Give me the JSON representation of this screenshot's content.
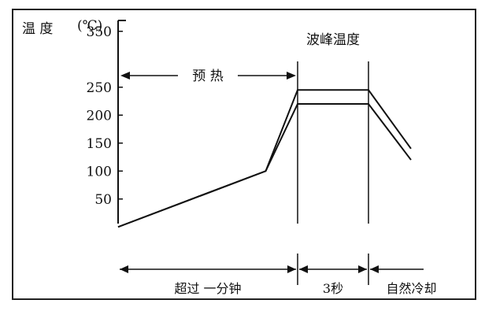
{
  "chart_data": {
    "type": "line",
    "ylabel": "温 度",
    "yunit": "(℃)",
    "yticks": [
      50,
      100,
      150,
      200,
      250,
      350
    ],
    "ylim": [
      -25,
      375
    ],
    "xlim": [
      0,
      248
    ],
    "series": [
      {
        "x": [
          0,
          125,
          152,
          212,
          248
        ],
        "y": [
          0,
          100,
          220,
          220,
          120
        ]
      },
      {
        "x": [
          0,
          125,
          152,
          212,
          248
        ],
        "y": [
          0,
          100,
          245,
          245,
          140
        ]
      }
    ],
    "marker_lines_x": [
      152,
      212
    ],
    "annotations": {
      "preheat": "预 热",
      "wave_temp": "波峰温度"
    },
    "phases": [
      {
        "label": "超过 一分钟",
        "x_start": 0,
        "x_end": 152
      },
      {
        "label": "3秒",
        "x_start": 152,
        "x_end": 212
      },
      {
        "label": "自然冷却",
        "x_start": 212,
        "x_end": 260
      }
    ]
  }
}
